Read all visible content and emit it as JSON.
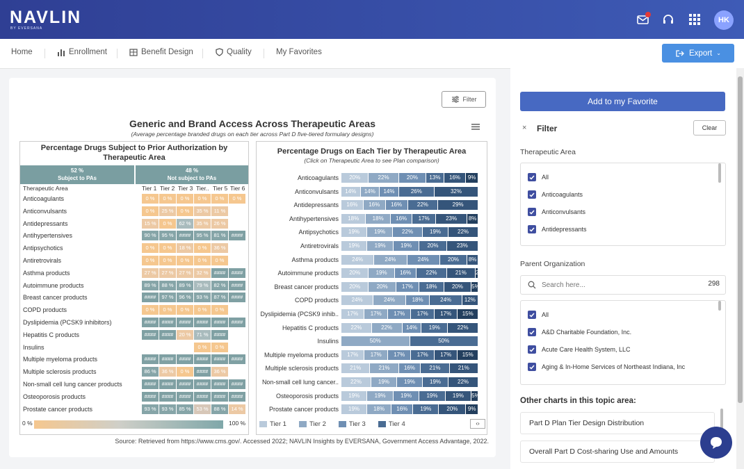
{
  "header": {
    "logo": "NAVLIN",
    "logo_sub": "BY EVERSANA",
    "avatar": "HK"
  },
  "nav": {
    "items": [
      "Home",
      "Enrollment",
      "Benefit Design",
      "Quality",
      "My Favorites"
    ],
    "export_label": "Export"
  },
  "card": {
    "filter_label": "Filter",
    "title": "Generic and Brand Access Across Therapeutic Areas",
    "subtitle": "(Average percentage branded drugs on each tier across Part D five-tiered formulary designs)",
    "source": "Source: Retrieved from https://www.cms.gov/. Accessed 2022; NAVLIN Insights by EVERSANA, Government Access Advantage, 2022."
  },
  "chart_data": [
    {
      "type": "table",
      "title": "Percentage Drugs Subject to Prior Authorization by Therapeutic Area",
      "group_headers": [
        {
          "pct": "52 %",
          "label": "Subject to PAs"
        },
        {
          "pct": "48 %",
          "label": "Not subject to PAs"
        }
      ],
      "columns": [
        "Therapeutic Area",
        "Tier 1",
        "Tier 2",
        "Tier 3",
        "Tier..",
        "Tier 5",
        "Tier 6"
      ],
      "legend_min": "0 %",
      "legend_max": "100 %",
      "rows": [
        {
          "area": "Anticoagulants",
          "cells": [
            "0 %",
            "0 %",
            "0 %",
            "0 %",
            "0 %",
            "0 %"
          ]
        },
        {
          "area": "Anticonvulsants",
          "cells": [
            "0 %",
            "25 %",
            "0 %",
            "35 %",
            "11 %",
            ""
          ]
        },
        {
          "area": "Antidepressants",
          "cells": [
            "15 %",
            "0 %",
            "62 %",
            "35 %",
            "26 %",
            ""
          ]
        },
        {
          "area": "Antihypertensives",
          "cells": [
            "90 %",
            "95 %",
            "####",
            "95 %",
            "81 %",
            "####"
          ]
        },
        {
          "area": "Antipsychotics",
          "cells": [
            "0 %",
            "0 %",
            "18 %",
            "0 %",
            "36 %",
            ""
          ]
        },
        {
          "area": "Antiretrovirals",
          "cells": [
            "0 %",
            "0 %",
            "0 %",
            "0 %",
            "0 %",
            ""
          ]
        },
        {
          "area": "Asthma products",
          "cells": [
            "27 %",
            "27 %",
            "27 %",
            "32 %",
            "####",
            "####"
          ]
        },
        {
          "area": "Autoimmune products",
          "cells": [
            "89 %",
            "88 %",
            "89 %",
            "79 %",
            "82 %",
            "####"
          ]
        },
        {
          "area": "Breast cancer products",
          "cells": [
            "####",
            "97 %",
            "96 %",
            "93 %",
            "87 %",
            "####"
          ]
        },
        {
          "area": "COPD products",
          "cells": [
            "0 %",
            "0 %",
            "0 %",
            "0 %",
            "0 %",
            ""
          ]
        },
        {
          "area": "Dyslipidemia (PCSK9 inhibitors)",
          "cells": [
            "####",
            "####",
            "####",
            "####",
            "####",
            "####"
          ]
        },
        {
          "area": "Hepatitis C products",
          "cells": [
            "####",
            "####",
            "20 %",
            "71 %",
            "####",
            ""
          ]
        },
        {
          "area": "Insulins",
          "cells": [
            "",
            "",
            "",
            "0 %",
            "0 %",
            ""
          ]
        },
        {
          "area": "Multiple myeloma products",
          "cells": [
            "####",
            "####",
            "####",
            "####",
            "####",
            "####"
          ]
        },
        {
          "area": "Multiple sclerosis products",
          "cells": [
            "86 %",
            "36 %",
            "0 %",
            "####",
            "36 %",
            ""
          ]
        },
        {
          "area": "Non-small cell lung cancer products",
          "cells": [
            "####",
            "####",
            "####",
            "####",
            "####",
            "####"
          ]
        },
        {
          "area": "Osteoporosis products",
          "cells": [
            "####",
            "####",
            "####",
            "####",
            "####",
            "####"
          ]
        },
        {
          "area": "Prostate cancer products",
          "cells": [
            "93 %",
            "93 %",
            "85 %",
            "53 %",
            "88 %",
            "14 %"
          ]
        }
      ]
    },
    {
      "type": "bar",
      "stacked": true,
      "orientation": "horizontal",
      "title": "Percentage Drugs on Each Tier by Therapeutic Area",
      "subtitle": "(Click on Therapeutic Area to see Plan comparison)",
      "categories": [
        "Anticoagulants",
        "Anticonvulsants",
        "Antidepressants",
        "Antihypertensives",
        "Antipsychotics",
        "Antiretrovirals",
        "Asthma products",
        "Autoimmune products",
        "Breast cancer products",
        "COPD products",
        "Dyslipidemia (PCSK9 inhib..",
        "Hepatitis C products",
        "Insulins",
        "Multiple myeloma products",
        "Multiple sclerosis products",
        "Non-small cell lung cancer..",
        "Osteoporosis products",
        "Prostate cancer products"
      ],
      "series": [
        {
          "name": "Tier 1",
          "color": "#b9cadb",
          "values": [
            20,
            14,
            16,
            18,
            19,
            19,
            24,
            20,
            20,
            24,
            17,
            22,
            0,
            17,
            21,
            22,
            19,
            19
          ]
        },
        {
          "name": "Tier 2",
          "color": "#8fa9c4",
          "values": [
            22,
            14,
            16,
            18,
            19,
            19,
            24,
            19,
            20,
            24,
            17,
            22,
            50,
            17,
            21,
            19,
            19,
            18
          ]
        },
        {
          "name": "Tier 3",
          "color": "#6f8fb3",
          "values": [
            20,
            14,
            16,
            16,
            22,
            19,
            24,
            16,
            17,
            18,
            17,
            14,
            0,
            17,
            16,
            19,
            19,
            16
          ]
        },
        {
          "name": "Tier 4",
          "color": "#4a6c93",
          "values": [
            13,
            26,
            22,
            17,
            19,
            20,
            20,
            22,
            18,
            24,
            17,
            19,
            50,
            17,
            21,
            19,
            19,
            19
          ]
        },
        {
          "name": "Tier 5",
          "color": "#35557a",
          "values": [
            16,
            32,
            29,
            23,
            22,
            23,
            8,
            21,
            20,
            12,
            17,
            22,
            0,
            17,
            21,
            22,
            19,
            20
          ]
        },
        {
          "name": "Tier 6",
          "color": "#233f5e",
          "values": [
            9,
            0,
            0,
            8,
            0,
            0,
            0,
            2,
            5,
            0,
            15,
            0,
            0,
            15,
            0,
            0,
            5,
            9
          ]
        }
      ],
      "legend_visible": [
        "Tier 1",
        "Tier 2",
        "Tier 3",
        "Tier 4"
      ]
    }
  ],
  "sidebar": {
    "favorite_label": "Add to my Favorite",
    "filter_label": "Filter",
    "clear_label": "Clear",
    "therapeutic_label": "Therapeutic Area",
    "therapeutic_options": [
      "All",
      "Anticoagulants",
      "Anticonvulsants",
      "Antidepressants"
    ],
    "parent_label": "Parent Organization",
    "search_placeholder": "Search here...",
    "search_count": "298",
    "parent_options": [
      "All",
      "A&D Charitable Foundation, Inc.",
      "Acute Care Health System, LLC",
      "Aging & In-Home Services of Northeast Indiana, Inc"
    ],
    "other_title": "Other charts in this topic area:",
    "other_items": [
      "Part D Plan Tier Design Distribution",
      "Overall Part D Cost-sharing Use and Amounts"
    ]
  },
  "colors": {
    "header": "#2f3f94",
    "accent": "#4a90e2",
    "pa_yes": "#7a9ea1",
    "pa_no": "#f5c78f"
  }
}
